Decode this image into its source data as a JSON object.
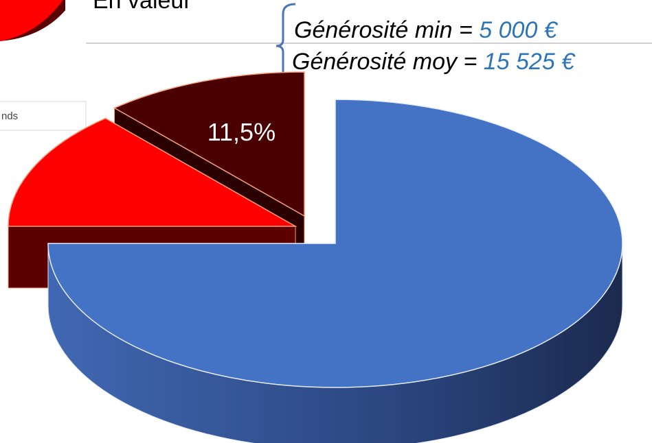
{
  "chart_data": {
    "type": "pie",
    "title": "En valeur",
    "values": [
      75,
      13.5,
      11.5
    ],
    "value_labels": [
      null,
      null,
      "11,5%"
    ],
    "colors": [
      "#4472c4",
      "#ff0000",
      "#4a0000"
    ],
    "legend_fragment": "nds",
    "annotations": [
      {
        "text": "Générosité min = ",
        "value": "5 000 €"
      },
      {
        "text": "Générosité moy = ",
        "value": "15 525 €"
      }
    ]
  }
}
